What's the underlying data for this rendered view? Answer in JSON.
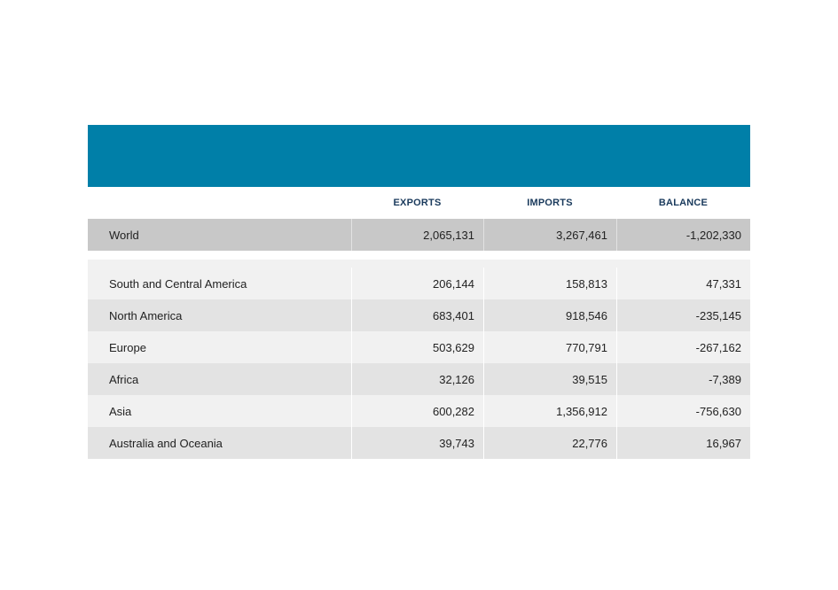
{
  "colors": {
    "banner": "#007fa8",
    "header_text": "#1a3a5c",
    "world_row": "#c8c8c8",
    "row_light": "#f1f1f1",
    "row_dark": "#e3e3e3"
  },
  "columns": {
    "exports": "EXPORTS",
    "imports": "IMPORTS",
    "balance": "BALANCE"
  },
  "world": {
    "name": "World",
    "exports": "2,065,131",
    "imports": "3,267,461",
    "balance": "-1,202,330"
  },
  "regions": [
    {
      "name": "South and Central America",
      "exports": "206,144",
      "imports": "158,813",
      "balance": "47,331"
    },
    {
      "name": "North America",
      "exports": "683,401",
      "imports": "918,546",
      "balance": "-235,145"
    },
    {
      "name": "Europe",
      "exports": "503,629",
      "imports": "770,791",
      "balance": "-267,162"
    },
    {
      "name": "Africa",
      "exports": "32,126",
      "imports": "39,515",
      "balance": "-7,389"
    },
    {
      "name": "Asia",
      "exports": "600,282",
      "imports": "1,356,912",
      "balance": "-756,630"
    },
    {
      "name": "Australia and Oceania",
      "exports": "39,743",
      "imports": "22,776",
      "balance": "16,967"
    }
  ]
}
